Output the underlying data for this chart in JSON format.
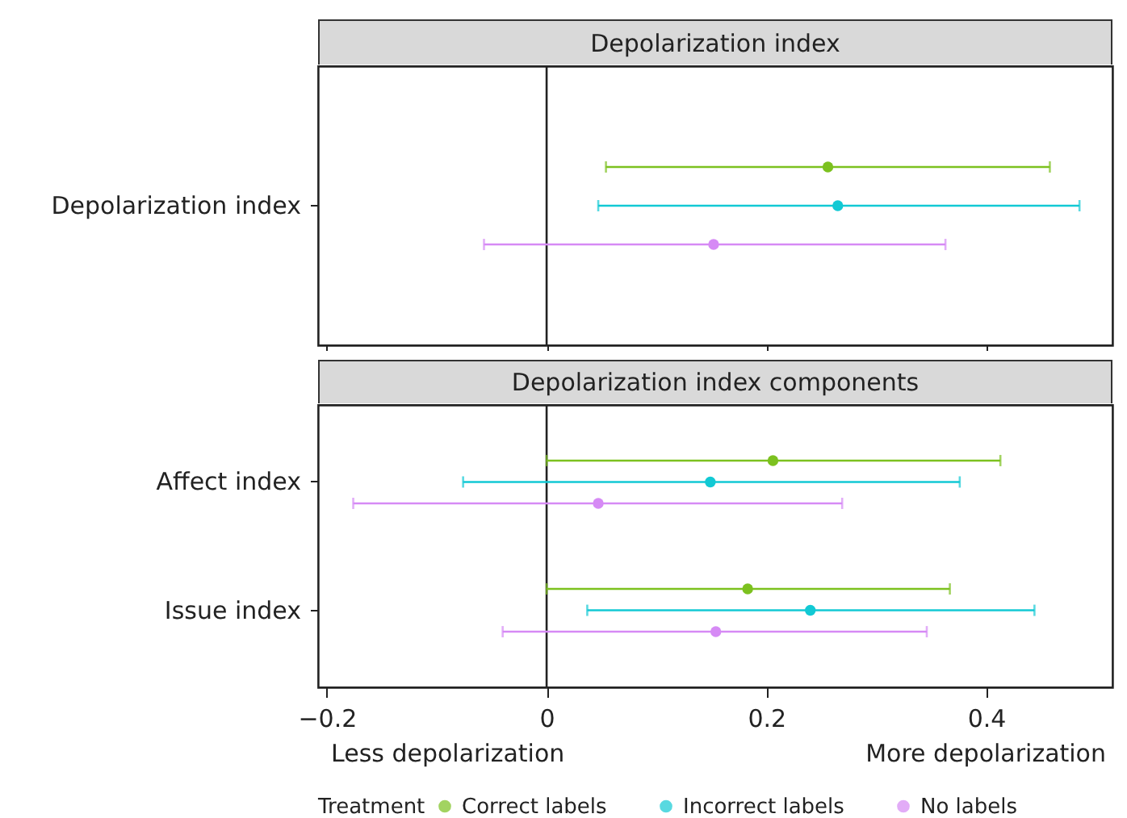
{
  "chart_data": [
    {
      "type": "scatter",
      "orientation": "horizontal",
      "title": "Depolarization index",
      "categories": [
        "Depolarization index"
      ],
      "series": [
        {
          "color": "#7cc11f",
          "values": [
            0.256
          ],
          "errors": [
            [
              0.054,
              0.458
            ]
          ]
        },
        {
          "color": "#12c9d4",
          "values": [
            0.265
          ],
          "errors": [
            [
              0.047,
              0.485
            ]
          ]
        },
        {
          "color": "#d68af5",
          "values": [
            0.152
          ],
          "errors": [
            [
              -0.057,
              0.363
            ]
          ]
        }
      ],
      "xlim": [
        -0.208,
        0.515
      ],
      "xticks": [
        {
          "value": -0.2,
          "label": null
        },
        {
          "value": 0,
          "label": null
        },
        {
          "value": 0.2,
          "label": null
        },
        {
          "value": 0.4,
          "label": null
        }
      ],
      "tick_labels": "y",
      "marker": "circle",
      "ref_lines": [
        {
          "axis": "x",
          "value": 0
        }
      ]
    },
    {
      "type": "scatter",
      "orientation": "horizontal",
      "title": "Depolarization index components",
      "categories": [
        "Affect index",
        "Issue index"
      ],
      "series": [
        {
          "name": "Correct labels",
          "color": "#7cc11f",
          "values": [
            0.206,
            0.183
          ],
          "errors": [
            [
              0.0,
              0.413
            ],
            [
              0.0,
              0.367
            ]
          ]
        },
        {
          "name": "Incorrect labels",
          "color": "#12c9d4",
          "values": [
            0.149,
            0.24
          ],
          "errors": [
            [
              -0.076,
              0.376
            ],
            [
              0.037,
              0.444
            ]
          ]
        },
        {
          "name": "No labels",
          "color": "#d68af5",
          "values": [
            0.047,
            0.154
          ],
          "errors": [
            [
              -0.176,
              0.269
            ],
            [
              -0.04,
              0.346
            ]
          ]
        }
      ],
      "xlim": [
        -0.208,
        0.515
      ],
      "xticks": [
        {
          "value": -0.2,
          "label": "−0.2"
        },
        0,
        0.2,
        0.4
      ],
      "marker": "circle",
      "ref_lines": [
        {
          "axis": "x",
          "value": 0
        }
      ],
      "legend": "bottom",
      "legend_title": "Treatment",
      "annotations": [
        "Less depolarization",
        "More depolarization"
      ]
    }
  ]
}
